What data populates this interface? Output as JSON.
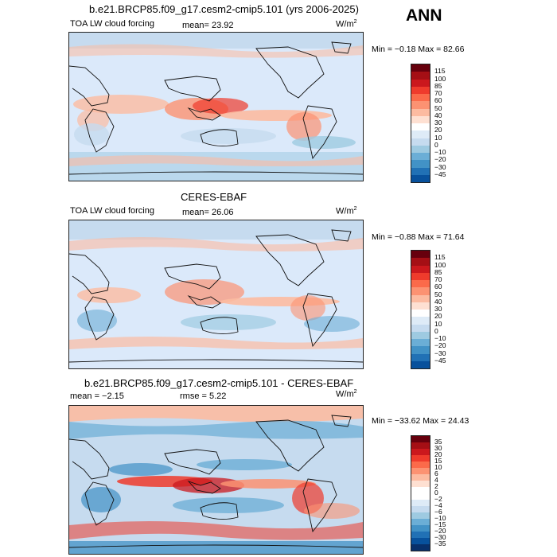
{
  "header": {
    "season": "ANN"
  },
  "panels": [
    {
      "title": "b.e21.BRCP85.f09_g17.cesm2-cmip5.101 (yrs 2006-2025)",
      "left_label": "TOA LW cloud forcing",
      "stat": "mean=  23.92",
      "units": "W/m",
      "units_exp": "2",
      "minmax": "Min =  −0.18 Max =  82.66",
      "colorbar": {
        "labels": [
          "115",
          "100",
          "85",
          "70",
          "60",
          "50",
          "40",
          "30",
          "20",
          "10",
          "0",
          "−10",
          "−20",
          "−30",
          "−45"
        ],
        "colors": [
          "#67000d",
          "#a50f15",
          "#cb181d",
          "#ef3b2c",
          "#fb6a4a",
          "#fc9272",
          "#fcbba1",
          "#fee0d2",
          "#ffffff",
          "#deebf7",
          "#c6dbef",
          "#9ecae1",
          "#6baed6",
          "#4292c6",
          "#2171b5",
          "#08519c"
        ]
      }
    },
    {
      "title": "CERES-EBAF",
      "left_label": "TOA LW cloud forcing",
      "stat": "mean=  26.06",
      "units": "W/m",
      "units_exp": "2",
      "minmax": "Min =  −0.88 Max =  71.64",
      "colorbar": {
        "labels": [
          "115",
          "100",
          "85",
          "70",
          "60",
          "50",
          "40",
          "30",
          "20",
          "10",
          "0",
          "−10",
          "−20",
          "−30",
          "−45"
        ],
        "colors": [
          "#67000d",
          "#a50f15",
          "#cb181d",
          "#ef3b2c",
          "#fb6a4a",
          "#fc9272",
          "#fcbba1",
          "#fee0d2",
          "#ffffff",
          "#deebf7",
          "#c6dbef",
          "#9ecae1",
          "#6baed6",
          "#4292c6",
          "#2171b5",
          "#08519c"
        ]
      }
    },
    {
      "title": "b.e21.BRCP85.f09_g17.cesm2-cmip5.101 - CERES-EBAF",
      "stat_mean": "mean =   −2.15",
      "stat_rmse": "rmse =   5.22",
      "units": "W/m",
      "units_exp": "2",
      "minmax": "Min = −33.62 Max =  24.43",
      "colorbar": {
        "labels": [
          "35",
          "30",
          "20",
          "15",
          "10",
          "6",
          "4",
          "2",
          "0",
          "−2",
          "−4",
          "−6",
          "−10",
          "−15",
          "−20",
          "−30",
          "−35"
        ],
        "colors": [
          "#67000d",
          "#a50f15",
          "#cb181d",
          "#ef3b2c",
          "#fb6a4a",
          "#fc9272",
          "#fcbba1",
          "#fee0d2",
          "#ffffff",
          "#ffffff",
          "#deebf7",
          "#c6dbef",
          "#9ecae1",
          "#6baed6",
          "#4292c6",
          "#2171b5",
          "#08519c",
          "#08306b"
        ]
      }
    }
  ]
}
